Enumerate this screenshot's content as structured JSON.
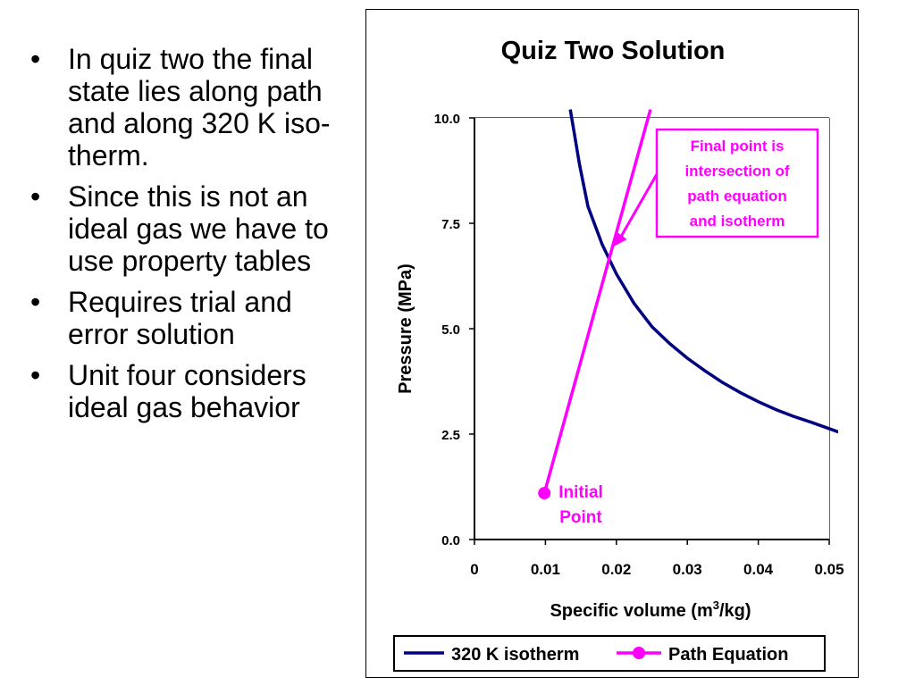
{
  "bullets": [
    "In quiz two the final state lies along path and along 320 K iso-therm.",
    "Since this is not an ideal gas we have to use property tables",
    "Requires trial and error solution",
    "Unit four considers ideal gas behavior"
  ],
  "chart_data": {
    "type": "line",
    "title": "Quiz Two Solution",
    "xlabel": "Specific volume (m³/kg)",
    "xlabel_base": "Specific volume (m",
    "xlabel_sup": "3",
    "xlabel_end": "/kg)",
    "ylabel": "Pressure (MPa)",
    "xlim": [
      0,
      0.05
    ],
    "ylim": [
      0,
      10
    ],
    "x_ticks": [
      0,
      0.01,
      0.02,
      0.03,
      0.04,
      0.05
    ],
    "x_tick_labels": [
      "0",
      "0.01",
      "0.02",
      "0.03",
      "0.04",
      "0.05"
    ],
    "y_ticks": [
      0,
      2.5,
      5,
      7.5,
      10
    ],
    "y_tick_labels": [
      "0.0",
      "2.5",
      "5.0",
      "7.5",
      "10.0"
    ],
    "grid": true,
    "legend_position": "bottom",
    "series": [
      {
        "name": "320 K isotherm",
        "color": "#000080",
        "marker": "none",
        "x": [
          0.0135,
          0.014,
          0.0148,
          0.016,
          0.018,
          0.02,
          0.0225,
          0.025,
          0.0275,
          0.03,
          0.0325,
          0.035,
          0.0375,
          0.04,
          0.0425,
          0.045,
          0.0475,
          0.0513
        ],
        "y": [
          10.2,
          9.7,
          8.9,
          7.9,
          7.0,
          6.3,
          5.6,
          5.05,
          4.65,
          4.3,
          4.0,
          3.72,
          3.48,
          3.27,
          3.08,
          2.92,
          2.78,
          2.55
        ]
      },
      {
        "name": "Path Equation",
        "color": "#ff00ff",
        "marker": "circle",
        "x": [
          0.00985,
          0.0248
        ],
        "y": [
          1.1,
          10.2
        ],
        "marker_points": [
          0
        ]
      }
    ],
    "annotations": [
      {
        "text_lines": [
          "Initial",
          "Point"
        ],
        "x": 0.0101,
        "y": 1.1,
        "color": "#ff00ff"
      },
      {
        "text_lines": [
          "Final point is",
          "intersection of",
          "path equation",
          "and isotherm"
        ],
        "x": 0.0196,
        "y": 6.95,
        "color": "#ff00ff",
        "boxed": true,
        "arrow": true
      }
    ]
  }
}
